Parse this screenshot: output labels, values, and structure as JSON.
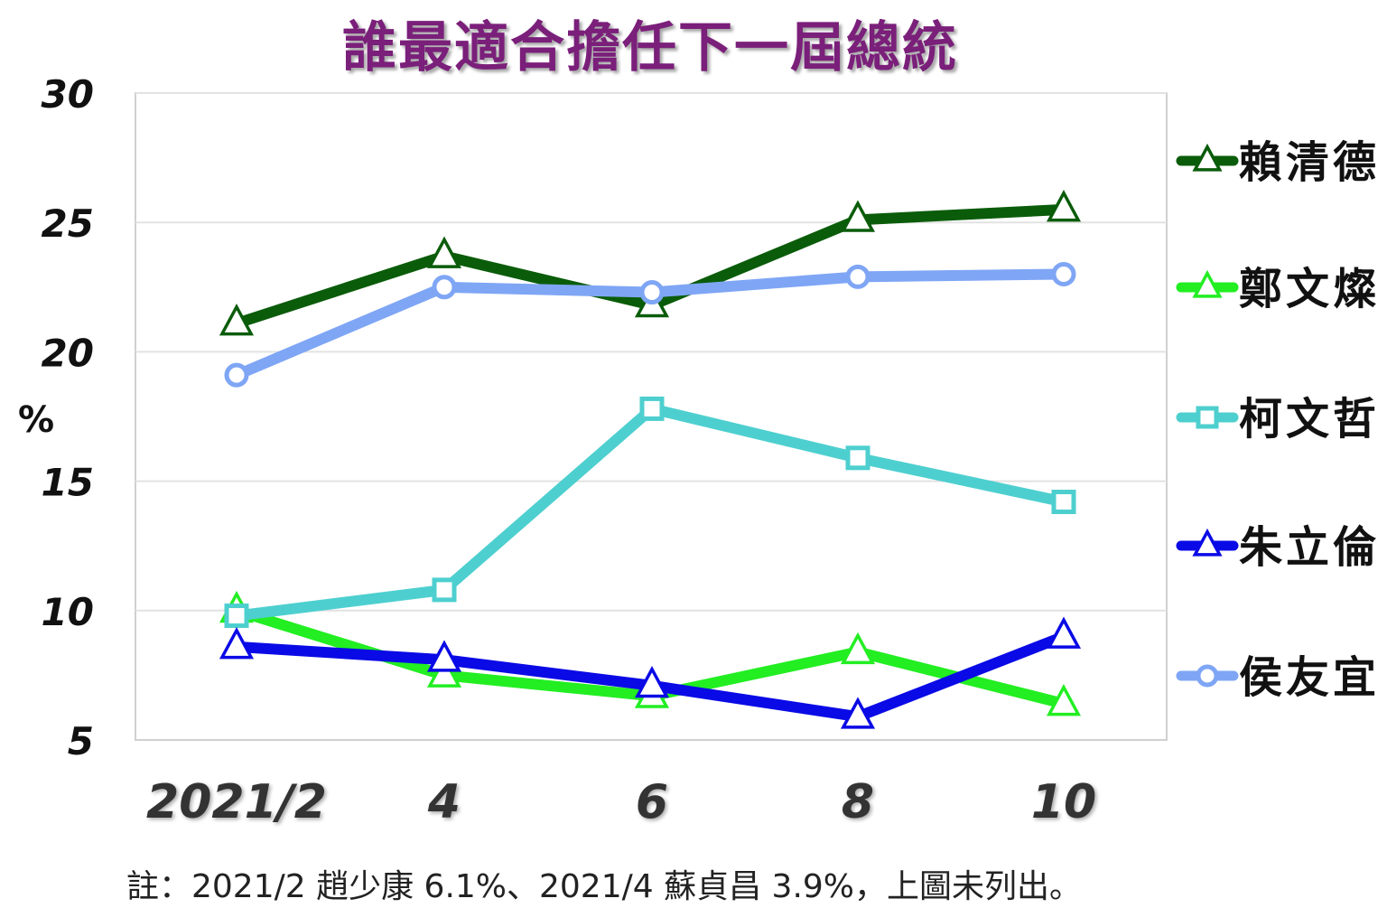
{
  "chart_data": {
    "type": "line",
    "title": "誰最適合擔任下一屆總統",
    "ylabel": "%",
    "xlabel": "",
    "categories": [
      "2021/2",
      "4",
      "6",
      "8",
      "10"
    ],
    "ylim": [
      5,
      30
    ],
    "yticks": [
      "5",
      "10",
      "15",
      "20",
      "25",
      "30"
    ],
    "grid": true,
    "legend_position": "right",
    "series": [
      {
        "name": "賴清德",
        "values": [
          21.1,
          23.7,
          21.8,
          25.1,
          25.5
        ],
        "color": "#0a5c0a",
        "marker": "triangle"
      },
      {
        "name": "鄭文燦",
        "values": [
          10.0,
          7.5,
          6.7,
          8.4,
          6.4
        ],
        "color": "#22ee22",
        "marker": "triangle"
      },
      {
        "name": "柯文哲",
        "values": [
          9.8,
          10.8,
          17.8,
          15.9,
          14.2
        ],
        "color": "#4ecfcf",
        "marker": "square"
      },
      {
        "name": "朱立倫",
        "values": [
          8.6,
          8.1,
          7.1,
          5.9,
          9.0
        ],
        "color": "#0a0ae6",
        "marker": "triangle"
      },
      {
        "name": "侯友宜",
        "values": [
          19.1,
          22.5,
          22.3,
          22.9,
          23.0
        ],
        "color": "#7fa6f5",
        "marker": "circle"
      }
    ],
    "footnote": "註：2021/2 趙少康 6.1%、2021/4 蘇貞昌 3.9%，上圖未列出。"
  }
}
